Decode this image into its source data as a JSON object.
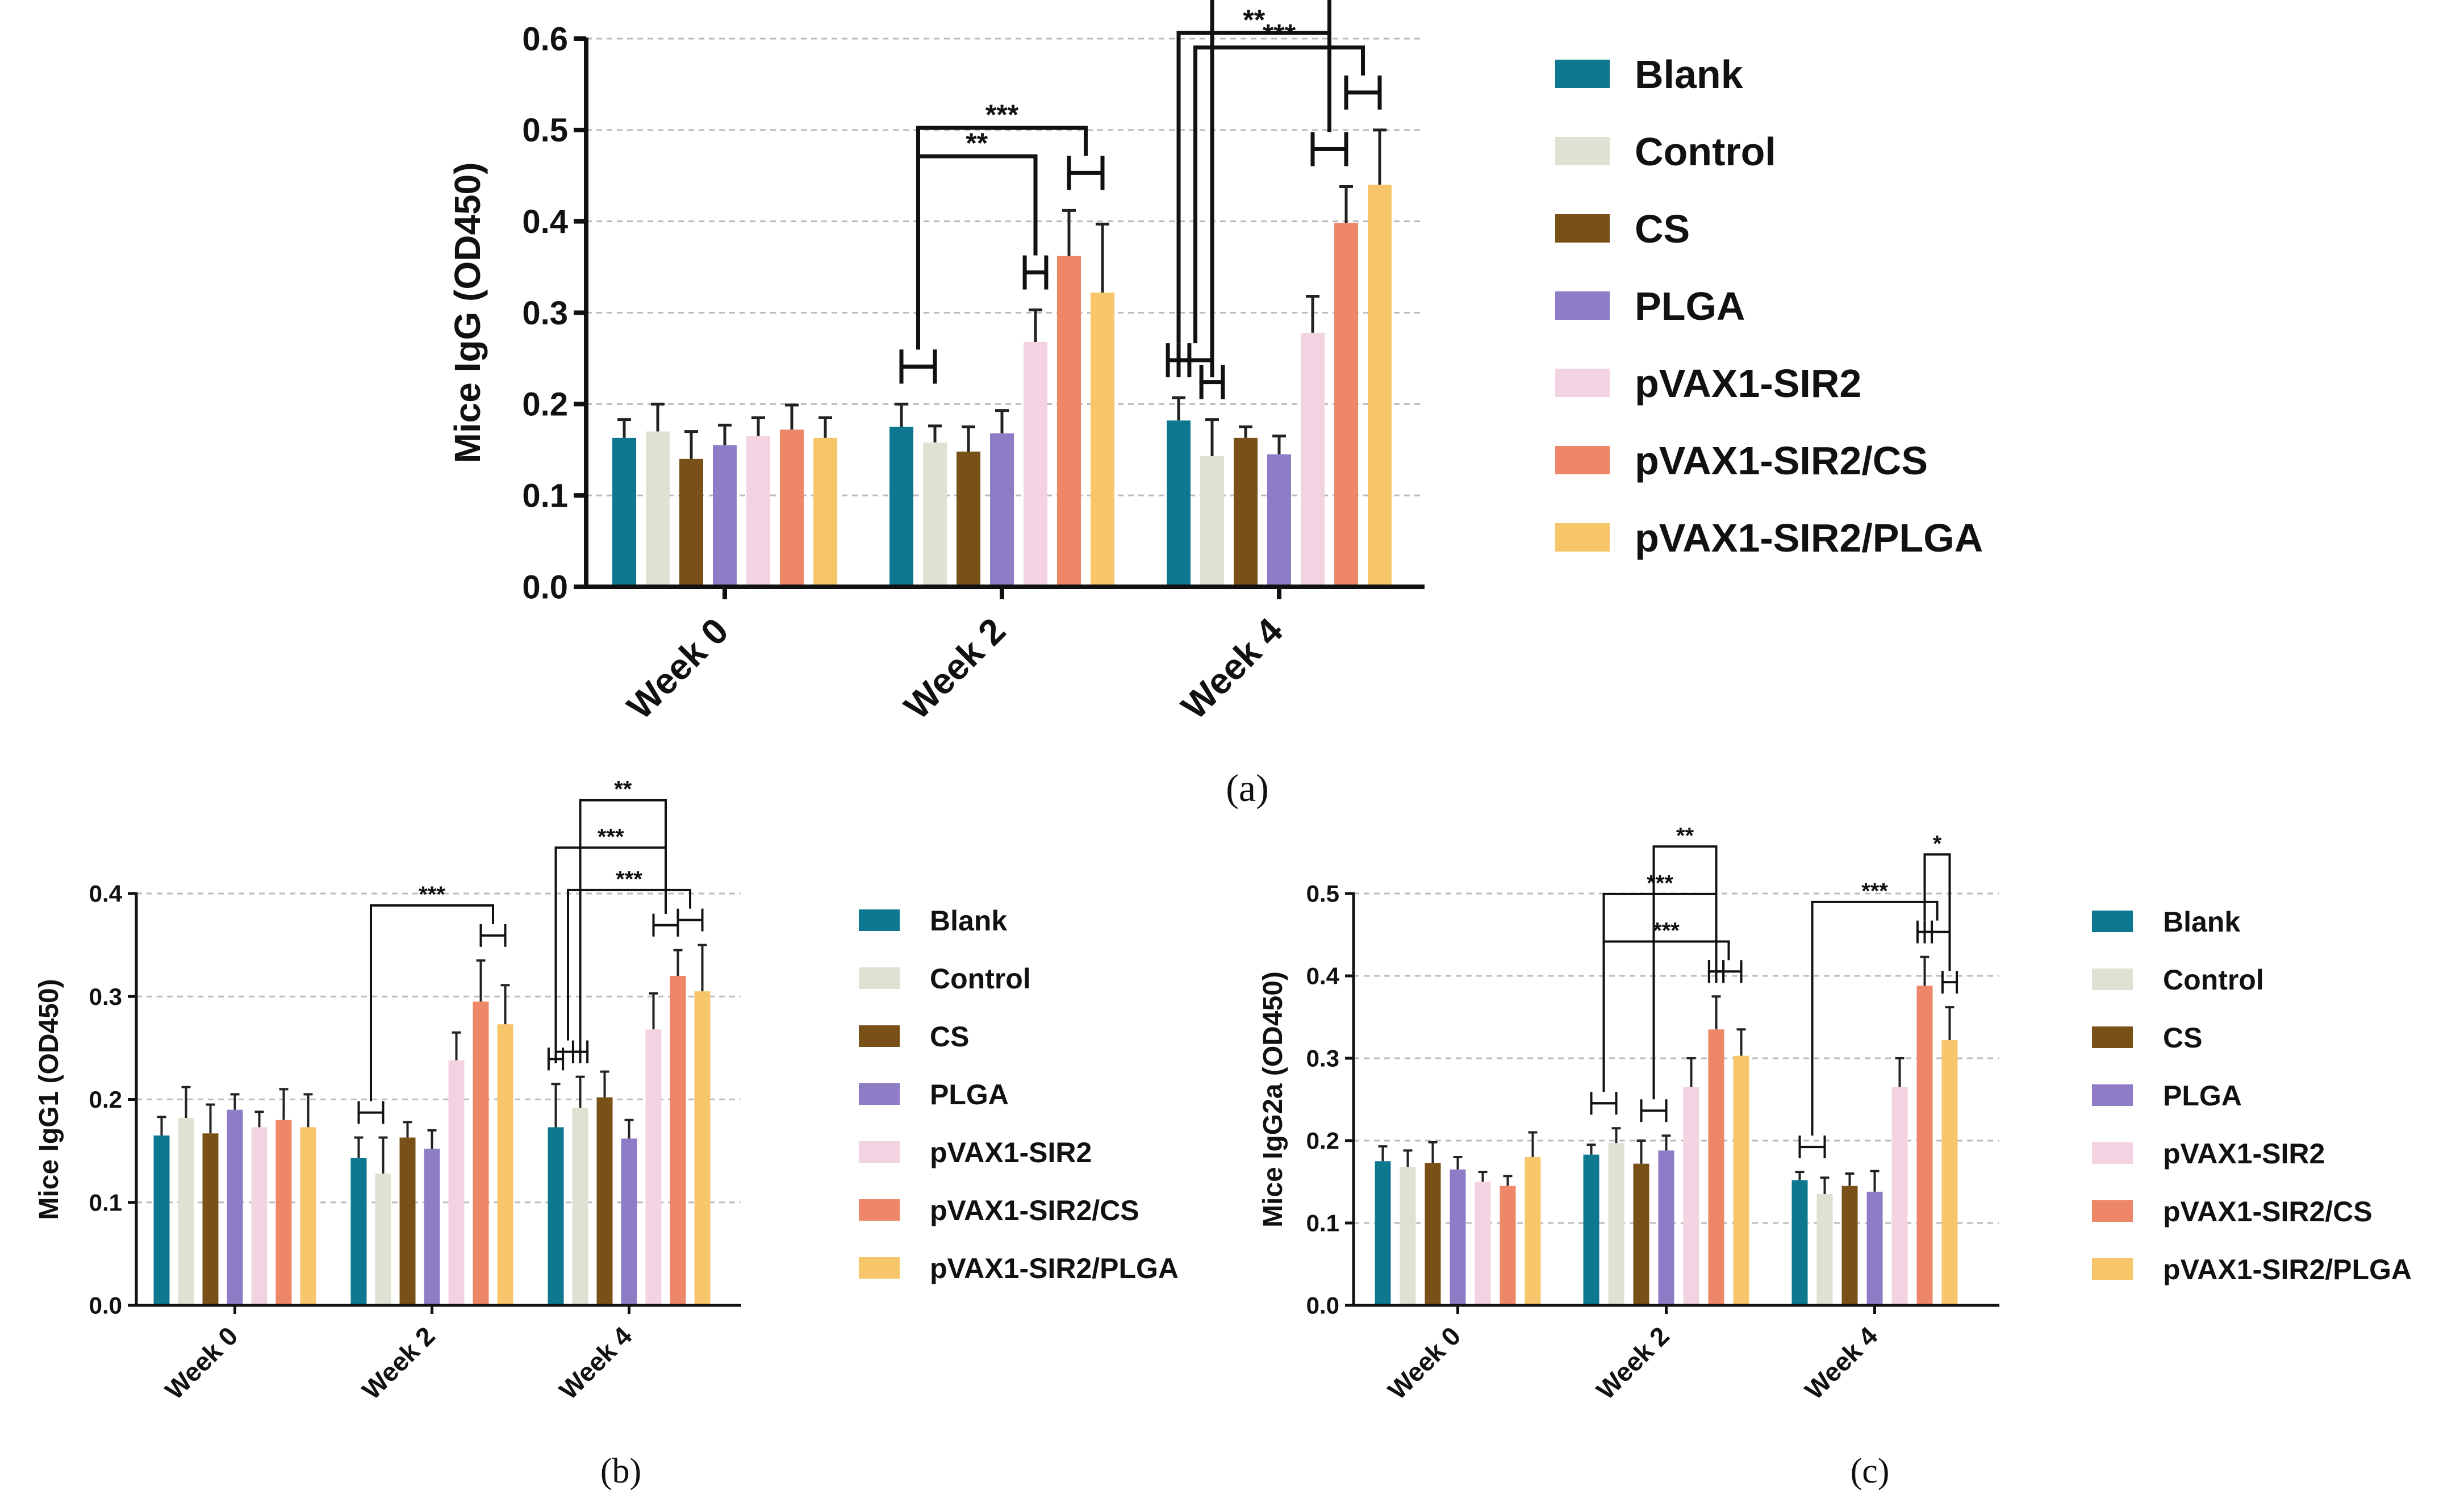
{
  "series": [
    "Blank",
    "Control",
    "CS",
    "PLGA",
    "pVAX1-SIR2",
    "pVAX1-SIR2/CS",
    "pVAX1-SIR2/PLGA"
  ],
  "colors": [
    "#0f7891",
    "#dfe2d2",
    "#7a5019",
    "#8e7cc6",
    "#f3d3e2",
    "#ee8768",
    "#f7c66a"
  ],
  "chart_data": [
    {
      "type": "bar",
      "panel": "(a)",
      "ylabel": "Mice IgG (OD450)",
      "ylim": [
        0,
        0.6
      ],
      "yticks": [
        "0.0",
        "0.1",
        "0.2",
        "0.3",
        "0.4",
        "0.5",
        "0.6"
      ],
      "grid": "dashed horizontal",
      "legend": "right",
      "categories": [
        "Week 0",
        "Week 2",
        "Week 4"
      ],
      "series": [
        {
          "name": "Blank",
          "values": [
            0.163,
            0.175,
            0.182
          ],
          "errors": [
            0.02,
            0.025,
            0.025
          ]
        },
        {
          "name": "Control",
          "values": [
            0.17,
            0.158,
            0.143
          ],
          "errors": [
            0.03,
            0.018,
            0.04
          ]
        },
        {
          "name": "CS",
          "values": [
            0.14,
            0.148,
            0.163
          ],
          "errors": [
            0.03,
            0.027,
            0.012
          ]
        },
        {
          "name": "PLGA",
          "values": [
            0.155,
            0.168,
            0.145
          ],
          "errors": [
            0.022,
            0.025,
            0.02
          ]
        },
        {
          "name": "pVAX1-SIR2",
          "values": [
            0.165,
            0.268,
            0.278
          ],
          "errors": [
            0.02,
            0.035,
            0.04
          ]
        },
        {
          "name": "pVAX1-SIR2/CS",
          "values": [
            0.172,
            0.362,
            0.398
          ],
          "errors": [
            0.027,
            0.05,
            0.04
          ]
        },
        {
          "name": "pVAX1-SIR2/PLGA",
          "values": [
            0.163,
            0.322,
            0.44
          ],
          "errors": [
            0.022,
            0.075,
            0.06
          ]
        }
      ],
      "significance": [
        {
          "label": "***",
          "week": "Week 2",
          "from": [
            "Blank",
            "Control"
          ],
          "to": [
            "pVAX1-SIR2/CS",
            "pVAX1-SIR2/PLGA"
          ]
        },
        {
          "label": "**",
          "week": "Week 2",
          "from": [
            "Blank",
            "Control"
          ],
          "to": [
            "pVAX1-SIR2"
          ]
        },
        {
          "label": "***",
          "week": "Week 4",
          "from": [
            "Blank",
            "Control"
          ],
          "to": [
            "pVAX1-SIR2/CS",
            "pVAX1-SIR2/PLGA"
          ]
        },
        {
          "label": "**",
          "week": "Week 4",
          "from": [
            "Blank"
          ],
          "to": [
            "pVAX1-SIR2",
            "pVAX1-SIR2/CS"
          ]
        },
        {
          "label": "***",
          "week": "Week 4",
          "from": [
            "Control"
          ],
          "to": [
            "pVAX1-SIR2",
            "pVAX1-SIR2/CS"
          ]
        }
      ]
    },
    {
      "type": "bar",
      "panel": "(b)",
      "ylabel": "Mice IgG1 (OD450)",
      "ylim": [
        0,
        0.4
      ],
      "yticks": [
        "0.0",
        "0.1",
        "0.2",
        "0.3",
        "0.4"
      ],
      "grid": "dashed horizontal",
      "legend": "right",
      "categories": [
        "Week 0",
        "Week 2",
        "Week 4"
      ],
      "series": [
        {
          "name": "Blank",
          "values": [
            0.165,
            0.143,
            0.173
          ],
          "errors": [
            0.018,
            0.02,
            0.042
          ]
        },
        {
          "name": "Control",
          "values": [
            0.182,
            0.128,
            0.192
          ],
          "errors": [
            0.03,
            0.035,
            0.03
          ]
        },
        {
          "name": "CS",
          "values": [
            0.167,
            0.163,
            0.202
          ],
          "errors": [
            0.028,
            0.015,
            0.025
          ]
        },
        {
          "name": "PLGA",
          "values": [
            0.19,
            0.152,
            0.162
          ],
          "errors": [
            0.015,
            0.018,
            0.018
          ]
        },
        {
          "name": "pVAX1-SIR2",
          "values": [
            0.173,
            0.238,
            0.268
          ],
          "errors": [
            0.015,
            0.027,
            0.035
          ]
        },
        {
          "name": "pVAX1-SIR2/CS",
          "values": [
            0.18,
            0.295,
            0.32
          ],
          "errors": [
            0.03,
            0.04,
            0.025
          ]
        },
        {
          "name": "pVAX1-SIR2/PLGA",
          "values": [
            0.173,
            0.273,
            0.305
          ],
          "errors": [
            0.032,
            0.038,
            0.045
          ]
        }
      ],
      "significance": [
        {
          "label": "***",
          "week": "Week 2",
          "from": [
            "Blank",
            "Control"
          ],
          "to": [
            "pVAX1-SIR2/CS",
            "pVAX1-SIR2/PLGA"
          ]
        },
        {
          "label": "***",
          "week": "Week 4",
          "from": [
            "Blank",
            "Control"
          ],
          "to": [
            "pVAX1-SIR2/CS",
            "pVAX1-SIR2/PLGA"
          ]
        },
        {
          "label": "***",
          "week": "Week 4",
          "from": [
            "Blank"
          ],
          "to": [
            "pVAX1-SIR2",
            "pVAX1-SIR2/CS"
          ]
        },
        {
          "label": "**",
          "week": "Week 4",
          "from": [
            "Control"
          ],
          "to": [
            "pVAX1-SIR2",
            "pVAX1-SIR2/CS"
          ]
        }
      ]
    },
    {
      "type": "bar",
      "panel": "(c)",
      "ylabel": "Mice IgG2a (OD450)",
      "ylim": [
        0,
        0.5
      ],
      "yticks": [
        "0.0",
        "0.1",
        "0.2",
        "0.3",
        "0.4",
        "0.5"
      ],
      "grid": "dashed horizontal",
      "legend": "right",
      "categories": [
        "Week 0",
        "Week 2",
        "Week 4"
      ],
      "series": [
        {
          "name": "Blank",
          "values": [
            0.175,
            0.183,
            0.152
          ],
          "errors": [
            0.018,
            0.012,
            0.01
          ]
        },
        {
          "name": "Control",
          "values": [
            0.168,
            0.197,
            0.135
          ],
          "errors": [
            0.02,
            0.018,
            0.02
          ]
        },
        {
          "name": "CS",
          "values": [
            0.173,
            0.172,
            0.145
          ],
          "errors": [
            0.025,
            0.028,
            0.015
          ]
        },
        {
          "name": "PLGA",
          "values": [
            0.165,
            0.188,
            0.138
          ],
          "errors": [
            0.015,
            0.018,
            0.025
          ]
        },
        {
          "name": "pVAX1-SIR2",
          "values": [
            0.15,
            0.265,
            0.265
          ],
          "errors": [
            0.012,
            0.035,
            0.035
          ]
        },
        {
          "name": "pVAX1-SIR2/CS",
          "values": [
            0.145,
            0.335,
            0.388
          ],
          "errors": [
            0.012,
            0.04,
            0.035
          ]
        },
        {
          "name": "pVAX1-SIR2/PLGA",
          "values": [
            0.18,
            0.303,
            0.322
          ],
          "errors": [
            0.03,
            0.032,
            0.04
          ]
        }
      ],
      "significance": [
        {
          "label": "***",
          "week": "Week 2",
          "from": [
            "Blank",
            "Control"
          ],
          "to": [
            "pVAX1-SIR2/CS",
            "pVAX1-SIR2/PLGA"
          ]
        },
        {
          "label": "***",
          "week": "Week 2",
          "from": [
            "Blank",
            "Control"
          ],
          "to": [
            "pVAX1-SIR2/CS"
          ]
        },
        {
          "label": "**",
          "week": "Week 2",
          "from": [
            "CS",
            "PLGA"
          ],
          "to": [
            "pVAX1-SIR2/CS"
          ]
        },
        {
          "label": "***",
          "week": "Week 4",
          "from": [
            "Blank",
            "Control"
          ],
          "to": [
            "pVAX1-SIR2/CS",
            "pVAX1-SIR2/PLGA"
          ]
        },
        {
          "label": "*",
          "week": "Week 4",
          "from": [
            "pVAX1-SIR2/CS"
          ],
          "to": [
            "pVAX1-SIR2/PLGA"
          ]
        }
      ]
    }
  ]
}
